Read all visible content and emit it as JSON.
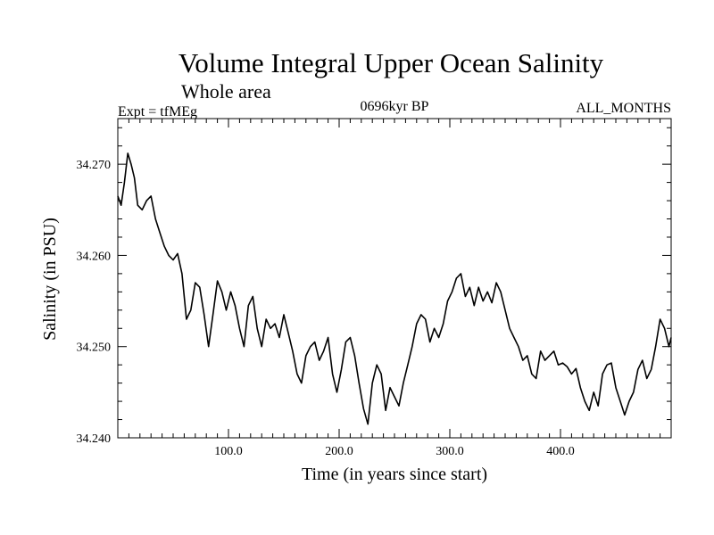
{
  "header": {
    "title": "Volume Integral Upper Ocean Salinity",
    "subtitle": "Whole area",
    "experiment": "Expt = tfMEg",
    "period": "0696kyr BP",
    "months": "ALL_MONTHS"
  },
  "chart_data": {
    "type": "line",
    "title": "Volume Integral Upper Ocean Salinity",
    "subtitle": "Whole area",
    "xlabel": "Time (in years since start)",
    "ylabel": "Salinity (in PSU)",
    "xlim": [
      0,
      500
    ],
    "ylim": [
      34.24,
      34.275
    ],
    "xticks": [
      100,
      200,
      300,
      400
    ],
    "xtick_labels": [
      "100.0",
      "200.0",
      "300.0",
      "400.0"
    ],
    "yticks": [
      34.24,
      34.25,
      34.26,
      34.27
    ],
    "ytick_labels": [
      "34.240",
      "34.250",
      "34.260",
      "34.270"
    ],
    "grid": false,
    "series": [
      {
        "name": "Upper ocean salinity",
        "x": [
          0,
          3,
          6,
          9,
          12,
          15,
          18,
          22,
          26,
          30,
          34,
          38,
          42,
          46,
          50,
          54,
          58,
          62,
          66,
          70,
          74,
          78,
          82,
          86,
          90,
          94,
          98,
          102,
          106,
          110,
          114,
          118,
          122,
          126,
          130,
          134,
          138,
          142,
          146,
          150,
          154,
          158,
          162,
          166,
          170,
          174,
          178,
          182,
          186,
          190,
          194,
          198,
          202,
          206,
          210,
          214,
          218,
          222,
          226,
          230,
          234,
          238,
          242,
          246,
          250,
          254,
          258,
          262,
          266,
          270,
          274,
          278,
          282,
          286,
          290,
          294,
          298,
          302,
          306,
          310,
          314,
          318,
          322,
          326,
          330,
          334,
          338,
          342,
          346,
          350,
          354,
          358,
          362,
          366,
          370,
          374,
          378,
          382,
          386,
          390,
          394,
          398,
          402,
          406,
          410,
          414,
          418,
          422,
          426,
          430,
          434,
          438,
          442,
          446,
          450,
          454,
          458,
          462,
          466,
          470,
          474,
          478,
          482,
          486,
          490,
          494,
          498,
          500
        ],
        "values": [
          34.2665,
          34.2655,
          34.268,
          34.2712,
          34.27,
          34.2685,
          34.2655,
          34.265,
          34.266,
          34.2665,
          34.264,
          34.2625,
          34.261,
          34.26,
          34.2595,
          34.2602,
          34.258,
          34.253,
          34.254,
          34.257,
          34.2565,
          34.2535,
          34.25,
          34.2535,
          34.2572,
          34.256,
          34.254,
          34.256,
          34.2545,
          34.252,
          34.25,
          34.2545,
          34.2555,
          34.252,
          34.25,
          34.253,
          34.252,
          34.2525,
          34.251,
          34.2535,
          34.2515,
          34.2495,
          34.247,
          34.246,
          34.249,
          34.25,
          34.2505,
          34.2485,
          34.2495,
          34.251,
          34.247,
          34.245,
          34.2475,
          34.2505,
          34.251,
          34.249,
          34.246,
          34.2432,
          34.2415,
          34.246,
          34.248,
          34.247,
          34.243,
          34.2455,
          34.2445,
          34.2435,
          34.246,
          34.248,
          34.25,
          34.2525,
          34.2535,
          34.253,
          34.2505,
          34.252,
          34.251,
          34.2525,
          34.255,
          34.256,
          34.2575,
          34.258,
          34.2555,
          34.2565,
          34.2545,
          34.2565,
          34.255,
          34.256,
          34.2548,
          34.257,
          34.256,
          34.254,
          34.252,
          34.251,
          34.25,
          34.2485,
          34.249,
          34.247,
          34.2465,
          34.2495,
          34.2485,
          34.249,
          34.2495,
          34.248,
          34.2482,
          34.2478,
          34.247,
          34.2476,
          34.2455,
          34.244,
          34.243,
          34.245,
          34.2435,
          34.247,
          34.248,
          34.2482,
          34.2455,
          34.244,
          34.2425,
          34.244,
          34.245,
          34.2475,
          34.2485,
          34.2465,
          34.2475,
          34.25,
          34.253,
          34.252,
          34.25,
          34.251
        ]
      }
    ]
  }
}
